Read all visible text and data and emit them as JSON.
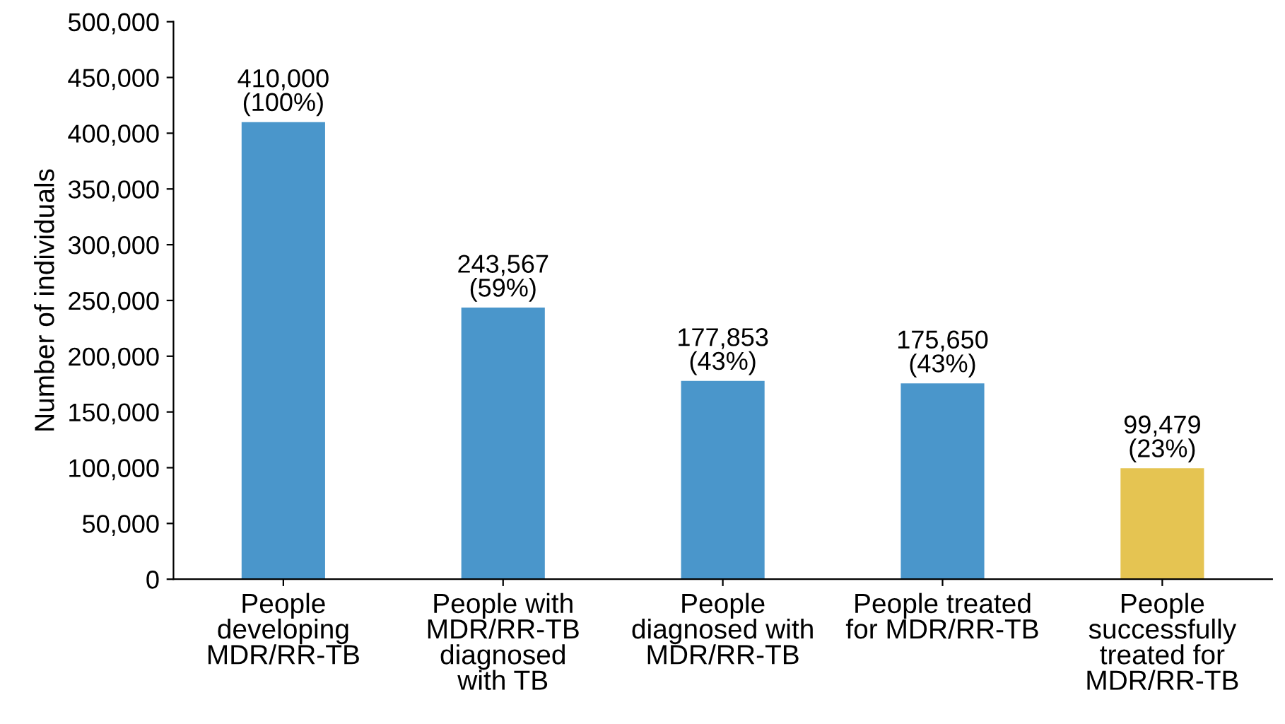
{
  "chart_data": {
    "type": "bar",
    "ylabel": "Number of individuals",
    "categories": [
      "People\ndeveloping\nMDR/RR-TB",
      "People with\nMDR/RR-TB\ndiagnosed\nwith TB",
      "People\ndiagnosed with\nMDR/RR-TB",
      "People treated\nfor MDR/RR-TB",
      "People\nsuccessfully\ntreated for\nMDR/RR-TB"
    ],
    "values": [
      410000,
      243567,
      177853,
      175650,
      99479
    ],
    "colors": [
      "#4a96cb",
      "#4a96cb",
      "#4a96cb",
      "#4a96cb",
      "#e5c452"
    ],
    "value_labels": [
      "410,000\n(100%)",
      "243,567\n(59%)",
      "177,853\n(43%)",
      "175,650\n(43%)",
      "99,479\n(23%)"
    ],
    "ylim": [
      0,
      500000
    ],
    "yticks": [
      0,
      {
        "value": 50000,
        "label": "50,000"
      },
      {
        "value": 100000,
        "label": "100,000"
      },
      {
        "value": 150000,
        "label": "150,000"
      },
      {
        "value": 200000,
        "label": "200,000"
      },
      {
        "value": 250000,
        "label": "250,000"
      },
      {
        "value": 300000,
        "label": "300,000"
      },
      {
        "value": 350000,
        "label": "350,000"
      },
      {
        "value": 400000,
        "label": "400,000"
      },
      {
        "value": 450000,
        "label": "450,000"
      },
      {
        "value": 500000,
        "label": "500,000"
      }
    ],
    "grid": false,
    "legend": false
  }
}
